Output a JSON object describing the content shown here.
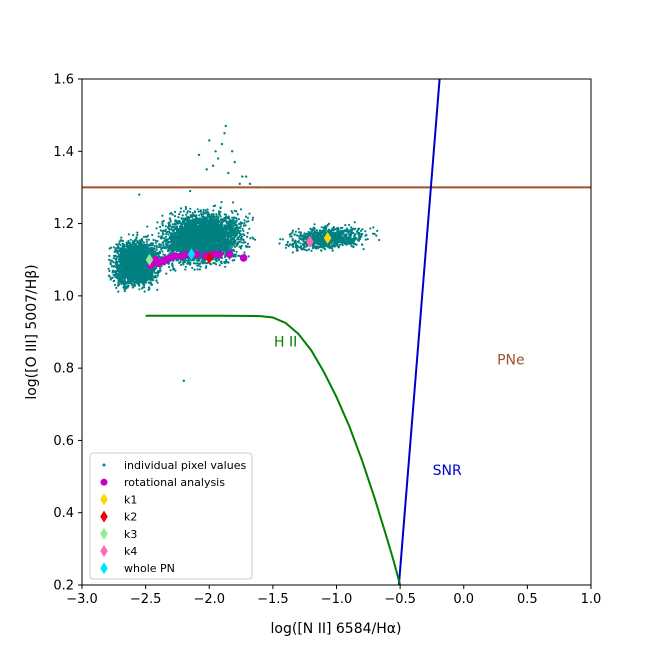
{
  "chart_data": {
    "type": "scatter",
    "xlabel": "log([N II] 6584/Hα)",
    "ylabel": "log([O III] 5007/Hβ)",
    "xlim": [
      -3.0,
      1.0
    ],
    "ylim": [
      0.2,
      1.6
    ],
    "x_ticks": [
      -3.0,
      -2.5,
      -2.0,
      -1.5,
      -1.0,
      -0.5,
      0.0,
      0.5,
      1.0
    ],
    "y_ticks": [
      0.2,
      0.4,
      0.6,
      0.8,
      1.0,
      1.2,
      1.4,
      1.6
    ],
    "x_tick_labels": [
      "−3.0",
      "−2.5",
      "−2.0",
      "−1.5",
      "−1.0",
      "−0.5",
      "0.0",
      "0.5",
      "1.0"
    ],
    "y_tick_labels": [
      "0.2",
      "0.4",
      "0.6",
      "0.8",
      "1.0",
      "1.2",
      "1.4",
      "1.6"
    ],
    "grid": false,
    "legend_position": "bottom-left",
    "series": [
      {
        "name": "individual pixel values",
        "color": "#008080",
        "marker": "dot",
        "clusters": [
          {
            "x_range": [
              -2.85,
              -2.3
            ],
            "y_range": [
              0.99,
              1.19
            ],
            "density": 2600
          },
          {
            "x_range": [
              -2.55,
              -1.55
            ],
            "y_range": [
              1.05,
              1.27
            ],
            "density": 3600
          },
          {
            "x_range": [
              -1.55,
              -0.6
            ],
            "y_range": [
              1.11,
              1.21
            ],
            "density": 900
          }
        ],
        "outliers": [
          [
            -1.87,
            1.47
          ],
          [
            -1.88,
            1.45
          ],
          [
            -1.9,
            1.42
          ],
          [
            -2.0,
            1.43
          ],
          [
            -1.93,
            1.38
          ],
          [
            -1.97,
            1.36
          ],
          [
            -1.82,
            1.4
          ],
          [
            -2.02,
            1.35
          ],
          [
            -1.95,
            1.4
          ],
          [
            -1.74,
            1.33
          ],
          [
            -1.71,
            1.33
          ],
          [
            -1.76,
            1.31
          ],
          [
            -1.68,
            1.31
          ],
          [
            -1.8,
            1.37
          ],
          [
            -2.08,
            1.39
          ],
          [
            -2.2,
            0.765
          ],
          [
            -2.55,
            1.28
          ],
          [
            -2.15,
            1.29
          ],
          [
            -1.62,
            1.3
          ],
          [
            -1.85,
            1.34
          ]
        ]
      },
      {
        "name": "rotational analysis",
        "color": "#c800c8",
        "marker": "circle",
        "points": [
          [
            -2.46,
            1.085
          ],
          [
            -2.44,
            1.095
          ],
          [
            -2.42,
            1.1
          ],
          [
            -2.4,
            1.09
          ],
          [
            -2.37,
            1.095
          ],
          [
            -2.34,
            1.1
          ],
          [
            -2.31,
            1.105
          ],
          [
            -2.27,
            1.11
          ],
          [
            -2.22,
            1.11
          ],
          [
            -2.17,
            1.115
          ],
          [
            -2.1,
            1.115
          ],
          [
            -2.03,
            1.11
          ],
          [
            -1.97,
            1.115
          ],
          [
            -1.92,
            1.115
          ],
          [
            -1.84,
            1.115
          ],
          [
            -1.73,
            1.105
          ]
        ]
      },
      {
        "name": "k1",
        "color": "#ffd700",
        "marker": "diamond",
        "points": [
          [
            -1.07,
            1.16
          ]
        ]
      },
      {
        "name": "k2",
        "color": "#e8000b",
        "marker": "diamond",
        "points": [
          [
            -2.0,
            1.105
          ]
        ]
      },
      {
        "name": "k3",
        "color": "#90ee90",
        "marker": "diamond",
        "points": [
          [
            -2.47,
            1.1
          ]
        ]
      },
      {
        "name": "k4",
        "color": "#ff69b4",
        "marker": "diamond",
        "points": [
          [
            -1.21,
            1.15
          ]
        ]
      },
      {
        "name": "whole PN",
        "color": "#00e5ff",
        "marker": "diamond",
        "points": [
          [
            -2.14,
            1.115
          ]
        ]
      }
    ],
    "lines": [
      {
        "label": "PNe",
        "color": "#a0522d",
        "y": 1.3
      },
      {
        "label": "SNR",
        "color": "#0000cc",
        "points": [
          [
            -0.51,
            0.2
          ],
          [
            -0.19,
            1.6
          ]
        ]
      },
      {
        "label": "H II",
        "color": "#008000",
        "points": [
          [
            -2.5,
            0.945
          ],
          [
            -2.2,
            0.945
          ],
          [
            -1.9,
            0.945
          ],
          [
            -1.6,
            0.944
          ],
          [
            -1.5,
            0.94
          ],
          [
            -1.4,
            0.925
          ],
          [
            -1.3,
            0.895
          ],
          [
            -1.2,
            0.85
          ],
          [
            -1.1,
            0.79
          ],
          [
            -1.0,
            0.72
          ],
          [
            -0.9,
            0.64
          ],
          [
            -0.8,
            0.545
          ],
          [
            -0.7,
            0.44
          ],
          [
            -0.6,
            0.325
          ],
          [
            -0.55,
            0.265
          ],
          [
            -0.5,
            0.2
          ]
        ]
      }
    ],
    "annotations": [
      {
        "text": "H II",
        "x": -1.4,
        "y": 0.86,
        "color": "#008000"
      },
      {
        "text": "PNe",
        "x": 0.37,
        "y": 0.81,
        "color": "#a0522d"
      },
      {
        "text": "SNR",
        "x": -0.13,
        "y": 0.505,
        "color": "#0000cc"
      }
    ]
  }
}
